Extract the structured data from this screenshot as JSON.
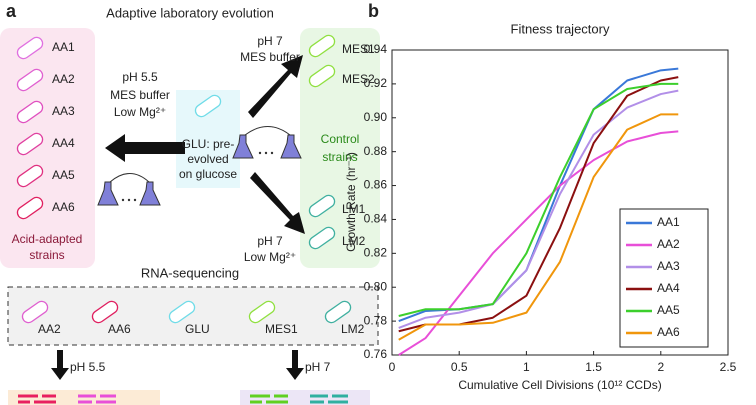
{
  "panel_a": {
    "label": "a",
    "title": "Adaptive laboratory evolution",
    "acid_strains": [
      "AA1",
      "AA2",
      "AA3",
      "AA4",
      "AA5",
      "AA6"
    ],
    "acid_caption": [
      "Acid-adapted",
      "strains"
    ],
    "acid_conditions": [
      "pH 5.5",
      "MES buffer",
      "Low Mg²⁺"
    ],
    "glu": [
      "GLU: pre-",
      "evolved",
      "on glucose"
    ],
    "mes_conditions": [
      "pH 7",
      "MES buffer"
    ],
    "mes_strains": [
      "MES1",
      "MES2"
    ],
    "control_caption": [
      "Control",
      "strains"
    ],
    "lm_conditions": [
      "pH 7",
      "Low Mg²⁺"
    ],
    "lm_strains": [
      "LM1",
      "LM2"
    ],
    "rna_title": "RNA-sequencing",
    "rna_strains": [
      "AA2",
      "AA6",
      "GLU",
      "MES1",
      "LM2"
    ],
    "rna_conditions": [
      "pH 5.5",
      "pH 7"
    ]
  },
  "panel_b_label": "b",
  "chart_data": {
    "type": "line",
    "title": "Fitness trajectory",
    "x_label": "Cumulative Cell Divisions (10¹² CCDs)",
    "y_label": "Growth Rate (hr⁻¹)",
    "x": [
      0.05,
      0.25,
      0.5,
      0.75,
      1,
      1.25,
      1.5,
      1.75,
      2,
      2.13
    ],
    "xlim": [
      0,
      2.5
    ],
    "xticks": [
      0,
      0.5,
      1,
      1.5,
      2,
      2.5
    ],
    "ylim": [
      0.76,
      0.94
    ],
    "yticks": [
      0.76,
      0.78,
      {
        "value": 0.8,
        "label": "0.80"
      },
      0.82,
      0.84,
      0.86,
      0.88,
      {
        "value": 0.9,
        "label": "0.90"
      },
      0.92,
      0.94
    ],
    "legend": "lower right",
    "series": [
      {
        "name": "AA1",
        "color": "#3a78d8",
        "values": [
          0.78,
          0.786,
          0.787,
          0.79,
          0.81,
          0.86,
          0.905,
          0.922,
          0.928,
          0.929
        ]
      },
      {
        "name": "AA2",
        "color": "#e84fd8",
        "values": [
          0.76,
          0.77,
          0.795,
          0.82,
          0.84,
          0.86,
          0.875,
          0.886,
          0.891,
          0.892
        ]
      },
      {
        "name": "AA3",
        "color": "#b28fe8",
        "values": [
          0.776,
          0.782,
          0.785,
          0.79,
          0.81,
          0.855,
          0.89,
          0.906,
          0.914,
          0.916
        ]
      },
      {
        "name": "AA4",
        "color": "#8b1010",
        "values": [
          0.774,
          0.778,
          0.778,
          0.782,
          0.795,
          0.835,
          0.885,
          0.913,
          0.922,
          0.924
        ]
      },
      {
        "name": "AA5",
        "color": "#3ccf2c",
        "values": [
          0.783,
          0.787,
          0.787,
          0.79,
          0.82,
          0.865,
          0.905,
          0.917,
          0.92,
          0.92
        ]
      },
      {
        "name": "AA6",
        "color": "#f0960c",
        "values": [
          0.769,
          0.778,
          0.778,
          0.779,
          0.785,
          0.815,
          0.865,
          0.893,
          0.902,
          0.902
        ]
      }
    ]
  }
}
